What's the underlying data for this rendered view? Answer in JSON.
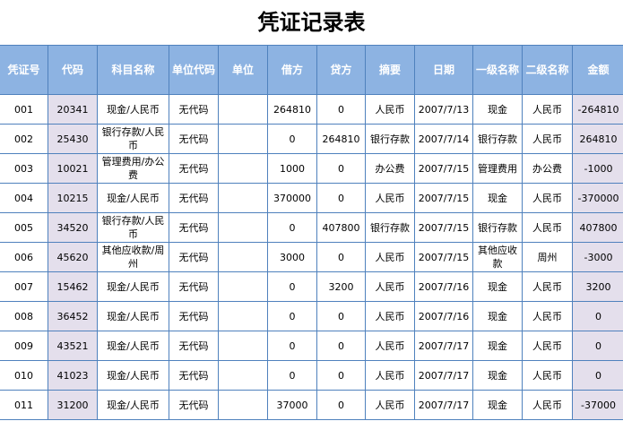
{
  "title": "凭证记录表",
  "colors": {
    "header_bg": "#8db3e2",
    "border": "#4f81bd",
    "shaded_col": "#e4dfec"
  },
  "headers": [
    "凭证号",
    "代码",
    "科目名称",
    "单位代码",
    "单位",
    "借方",
    "贷方",
    "摘要",
    "日期",
    "一级名称",
    "二级名称",
    "金额"
  ],
  "rows": [
    [
      "001",
      "20341",
      "现金/人民币",
      "无代码",
      "",
      "264810",
      "0",
      "人民币",
      "2007/7/13",
      "现金",
      "人民币",
      "-264810"
    ],
    [
      "002",
      "25430",
      "银行存款/人民币",
      "无代码",
      "",
      "0",
      "264810",
      "银行存款",
      "2007/7/14",
      "银行存款",
      "人民币",
      "264810"
    ],
    [
      "003",
      "10021",
      "管理费用/办公费",
      "无代码",
      "",
      "1000",
      "0",
      "办公费",
      "2007/7/15",
      "管理费用",
      "办公费",
      "-1000"
    ],
    [
      "004",
      "10215",
      "现金/人民币",
      "无代码",
      "",
      "370000",
      "0",
      "人民币",
      "2007/7/15",
      "现金",
      "人民币",
      "-370000"
    ],
    [
      "005",
      "34520",
      "银行存款/人民币",
      "无代码",
      "",
      "0",
      "407800",
      "银行存款",
      "2007/7/15",
      "银行存款",
      "人民币",
      "407800"
    ],
    [
      "006",
      "45620",
      "其他应收款/周州",
      "无代码",
      "",
      "3000",
      "0",
      "人民币",
      "2007/7/15",
      "其他应收款",
      "周州",
      "-3000"
    ],
    [
      "007",
      "15462",
      "现金/人民币",
      "无代码",
      "",
      "0",
      "3200",
      "人民币",
      "2007/7/16",
      "现金",
      "人民币",
      "3200"
    ],
    [
      "008",
      "36452",
      "现金/人民币",
      "无代码",
      "",
      "0",
      "0",
      "人民币",
      "2007/7/16",
      "现金",
      "人民币",
      "0"
    ],
    [
      "009",
      "43521",
      "现金/人民币",
      "无代码",
      "",
      "0",
      "0",
      "人民币",
      "2007/7/17",
      "现金",
      "人民币",
      "0"
    ],
    [
      "010",
      "41023",
      "现金/人民币",
      "无代码",
      "",
      "0",
      "0",
      "人民币",
      "2007/7/17",
      "现金",
      "人民币",
      "0"
    ],
    [
      "011",
      "31200",
      "现金/人民币",
      "无代码",
      "",
      "37000",
      "0",
      "人民币",
      "2007/7/17",
      "现金",
      "人民币",
      "-37000"
    ]
  ]
}
